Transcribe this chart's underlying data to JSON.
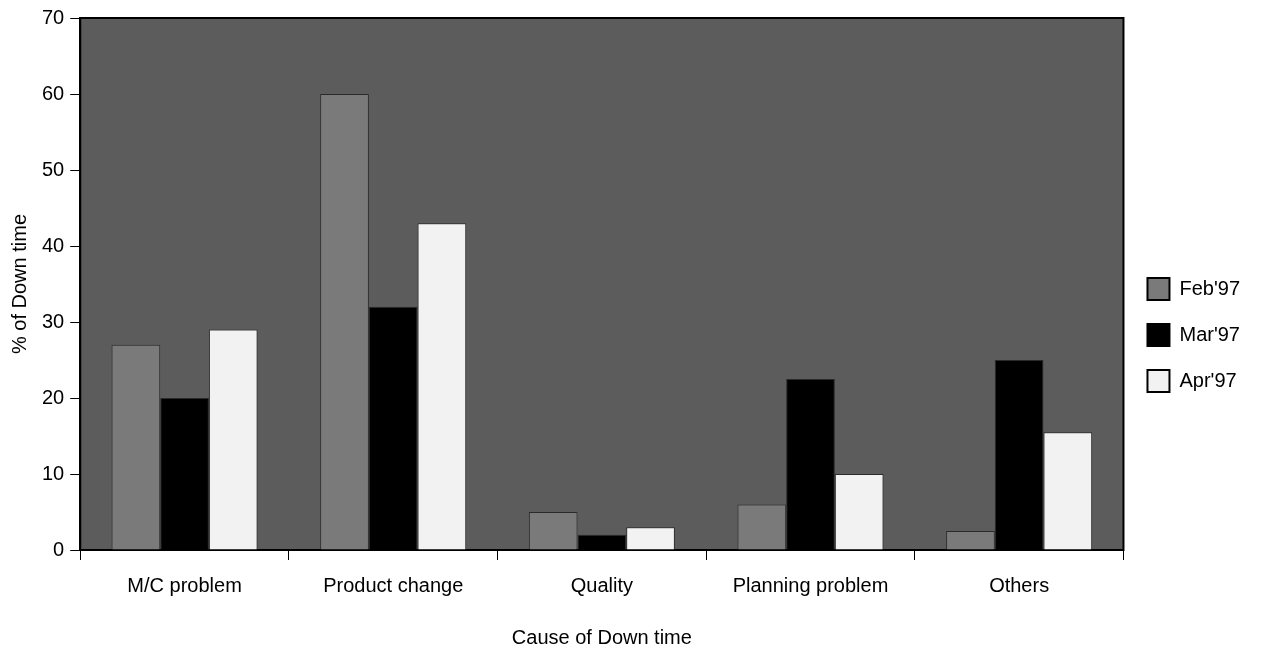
{
  "chart_data": {
    "type": "bar",
    "xlabel": "Cause of Down time",
    "ylabel": "% of Down time",
    "categories": [
      "M/C problem",
      "Product change",
      "Quality",
      "Planning problem",
      "Others"
    ],
    "series": [
      {
        "name": "Feb'97",
        "color": "#7a7a7a",
        "values": [
          27,
          60,
          5,
          6,
          2.5
        ]
      },
      {
        "name": "Mar'97",
        "color": "#000000",
        "values": [
          20,
          32,
          2,
          22.5,
          25
        ]
      },
      {
        "name": "Apr'97",
        "color": "#f2f2f2",
        "values": [
          29,
          43,
          3,
          10,
          15.5
        ]
      }
    ],
    "ylim": [
      0,
      70
    ],
    "yticks": [
      0,
      10,
      20,
      30,
      40,
      50,
      60,
      70
    ],
    "legend": "right"
  }
}
